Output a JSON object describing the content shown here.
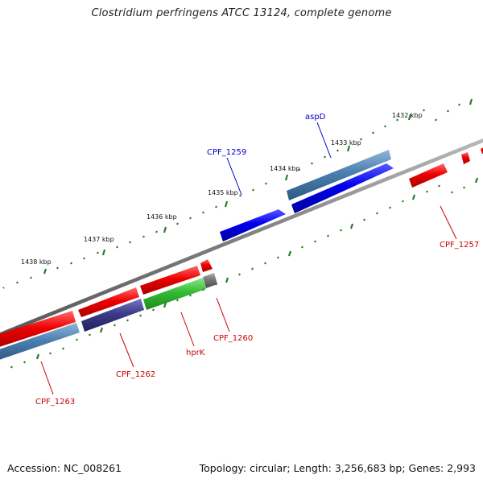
{
  "title": "Clostridium perfringens ATCC 13124, complete genome",
  "footer": {
    "accession": "Accession: NC_008261",
    "summary": "Topology: circular; Length: 3,256,683 bp; Genes: 2,993"
  },
  "colors": {
    "forward_gene": "#0000ee",
    "reverse_gene": "#ee0000",
    "cds_blue": "#4a7fb0",
    "cds_purple": "#3d3a8a",
    "cds_green": "#33bb33",
    "cds_grey": "#777777",
    "backbone": "#777777",
    "ticks": "#2a7a2a"
  },
  "kbp_labels": [
    "1432 kbp",
    "1433 kbp",
    "1434 kbp",
    "1435 kbp",
    "1436 kbp",
    "1437 kbp",
    "1438 kbp"
  ],
  "genes": [
    {
      "name": "aspD",
      "strand": "forward"
    },
    {
      "name": "CPF_1259",
      "strand": "forward"
    },
    {
      "name": "CPF_1257",
      "strand": "reverse"
    },
    {
      "name": "CPF_1260",
      "strand": "reverse"
    },
    {
      "name": "hprK",
      "strand": "reverse"
    },
    {
      "name": "CPF_1262",
      "strand": "reverse"
    },
    {
      "name": "CPF_1263",
      "strand": "reverse"
    }
  ]
}
